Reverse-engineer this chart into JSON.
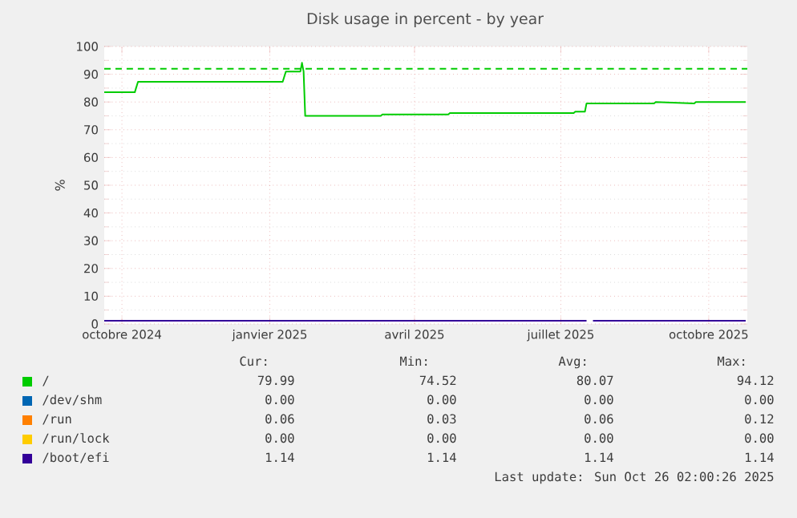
{
  "chart_data": {
    "type": "line",
    "title": "Disk usage in percent - by year",
    "ylabel": "%",
    "xlim": [
      "2024-09-20",
      "2025-10-25"
    ],
    "xticks": [
      {
        "value": "2024-10-01",
        "label": "octobre 2024"
      },
      {
        "value": "2025-01-01",
        "label": "janvier 2025"
      },
      {
        "value": "2025-04-01",
        "label": "avril 2025"
      },
      {
        "value": "2025-07-01",
        "label": "juillet 2025"
      },
      {
        "value": "2025-10-01",
        "label": "octobre 2025"
      }
    ],
    "ylim": [
      0,
      100
    ],
    "yticks": [
      0,
      10,
      20,
      30,
      40,
      50,
      60,
      70,
      80,
      90,
      100
    ],
    "grid": true,
    "legend": "bottom",
    "series": [
      {
        "name": "/",
        "color": "#00cc00",
        "x": [
          "2024-09-20",
          "2024-10-09",
          "2024-10-11",
          "2025-01-09",
          "2025-01-11",
          "2025-01-20",
          "2025-01-21",
          "2025-01-22",
          "2025-01-23",
          "2025-03-11",
          "2025-03-12",
          "2025-04-22",
          "2025-04-23",
          "2025-07-09",
          "2025-07-10",
          "2025-07-16",
          "2025-07-17",
          "2025-08-28",
          "2025-08-29",
          "2025-09-22",
          "2025-09-23",
          "2025-10-24"
        ],
        "values": [
          83.5,
          83.5,
          87.3,
          87.3,
          91,
          91,
          94.12,
          91,
          75,
          75,
          75.5,
          75.5,
          76,
          76,
          76.5,
          76.5,
          79.5,
          79.5,
          80,
          79.5,
          80,
          79.99
        ]
      },
      {
        "name": "/dev/shm",
        "color": "#0066b3"
      },
      {
        "name": "/run",
        "color": "#ff8000"
      },
      {
        "name": "/run/lock",
        "color": "#ffcc00"
      },
      {
        "name": "/boot/efi",
        "color": "#330099",
        "x": [
          "2024-09-20",
          "2025-07-17",
          "2025-07-19",
          "2025-07-21",
          "2025-10-24"
        ],
        "values": [
          1.14,
          1.14,
          null,
          1.14,
          1.14
        ]
      }
    ],
    "ref_lines": [
      {
        "axis": "y",
        "value": 92,
        "color": "#00cc00",
        "line_style": "dashed"
      }
    ],
    "annotations": [
      "Cur:",
      "Min:",
      "Avg:",
      "Max:",
      "79.99",
      "74.52",
      "80.07",
      "94.12",
      "0.00",
      "0.00",
      "0.00",
      "0.00",
      "0.06",
      "0.03",
      "0.06",
      "0.12",
      "0.00",
      "0.00",
      "0.00",
      "0.00",
      "1.14",
      "1.14",
      "1.14",
      "1.14",
      "Last update: Sun Oct 26 02:00:26 2025"
    ]
  }
}
